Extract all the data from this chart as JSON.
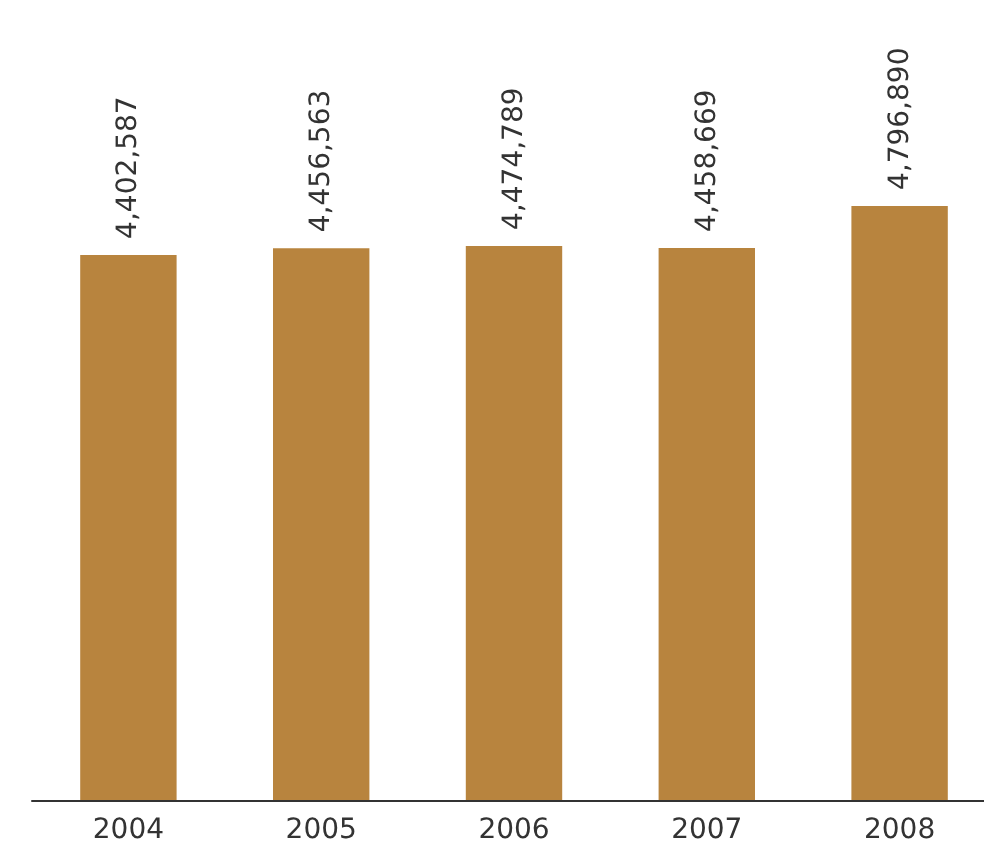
{
  "chart_data": {
    "type": "bar",
    "categories": [
      "2004",
      "2005",
      "2006",
      "2007",
      "2008"
    ],
    "values": [
      4402587,
      4456563,
      4474789,
      4458669,
      4796890
    ],
    "value_labels": [
      "4,402,587",
      "4,456,563",
      "4,474,789",
      "4,458,669",
      "4,796,890"
    ],
    "color": "#b8843e"
  }
}
